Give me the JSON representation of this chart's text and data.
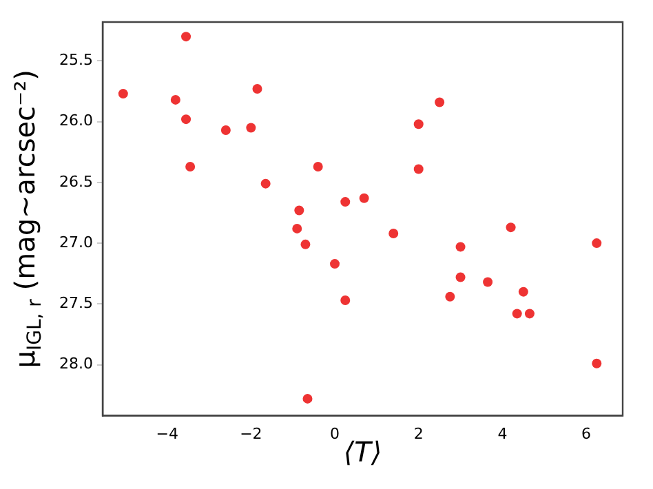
{
  "chart_data": {
    "type": "scatter",
    "xlabel": "⟨T⟩",
    "ylabel": "μ$_{IGL, r}$ (mag~arcsec⁻²)",
    "xlim": [
      -5.54,
      6.87
    ],
    "ylim": [
      28.42,
      25.18
    ],
    "xticks": [
      {
        "value": -4,
        "label": "−4"
      },
      {
        "value": -2,
        "label": "−2"
      },
      0,
      2,
      4,
      6
    ],
    "yticks": [
      25.5,
      {
        "value": 26,
        "label": "26.0"
      },
      26.5,
      {
        "value": 27,
        "label": "27.0"
      },
      27.5,
      {
        "value": 28,
        "label": "28.0"
      }
    ],
    "marker": "circle",
    "grid": false,
    "legend": false,
    "series": [
      {
        "color": "#ee3333",
        "x": [
          -5.05,
          -3.8,
          -3.55,
          -3.55,
          -3.45,
          -2.6,
          -2.0,
          -1.85,
          -1.65,
          -0.85,
          -0.9,
          -0.7,
          -0.4,
          0.0,
          0.25,
          0.25,
          0.7,
          -0.65,
          1.4,
          2.0,
          2.0,
          2.5,
          3.0,
          3.0,
          2.75,
          3.65,
          4.2,
          4.35,
          4.5,
          4.65,
          6.25,
          6.25
        ],
        "values": [
          25.77,
          25.82,
          25.3,
          25.98,
          26.37,
          26.07,
          26.05,
          25.73,
          26.51,
          26.73,
          26.88,
          27.01,
          26.37,
          27.17,
          26.66,
          27.47,
          26.63,
          28.28,
          26.92,
          26.02,
          26.39,
          25.84,
          27.03,
          27.28,
          27.44,
          27.32,
          26.87,
          27.58,
          27.4,
          27.58,
          27.0,
          27.99
        ]
      }
    ]
  }
}
